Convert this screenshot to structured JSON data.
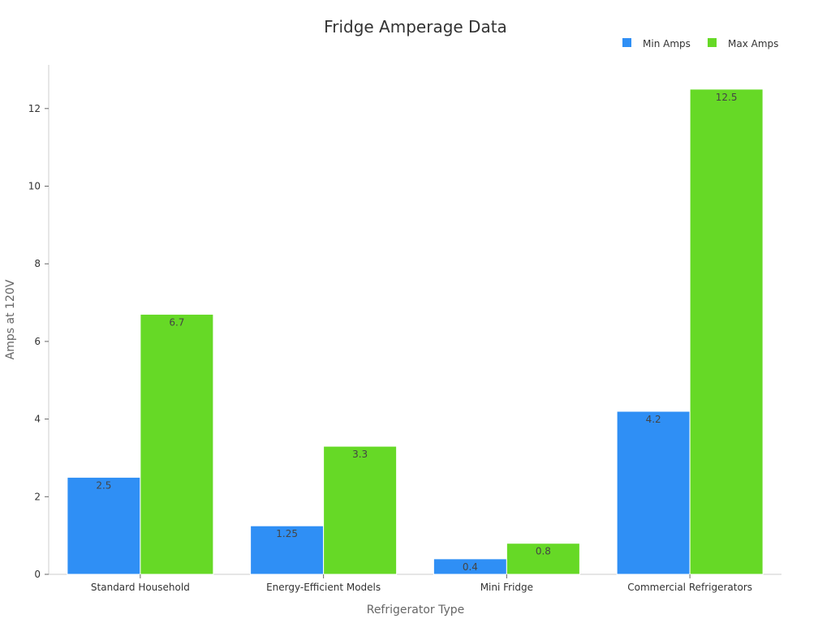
{
  "chart_data": {
    "type": "bar",
    "title": "Fridge Amperage Data",
    "xlabel": "Refrigerator Type",
    "ylabel": "Amps at 120V",
    "categories": [
      "Standard Household",
      "Energy-Efficient Models",
      "Mini Fridge",
      "Commercial Refrigerators"
    ],
    "series": [
      {
        "name": "Min Amps",
        "values": [
          2.5,
          1.25,
          0.4,
          4.2
        ],
        "color": "#2f8ff5"
      },
      {
        "name": "Max Amps",
        "values": [
          6.7,
          3.3,
          0.8,
          12.5
        ],
        "color": "#66d926"
      }
    ],
    "ylim": [
      0,
      13.1
    ],
    "yticks": [
      0,
      2,
      4,
      6,
      8,
      10,
      12
    ],
    "grid": false,
    "legend": "top-right",
    "data_labels": true
  }
}
